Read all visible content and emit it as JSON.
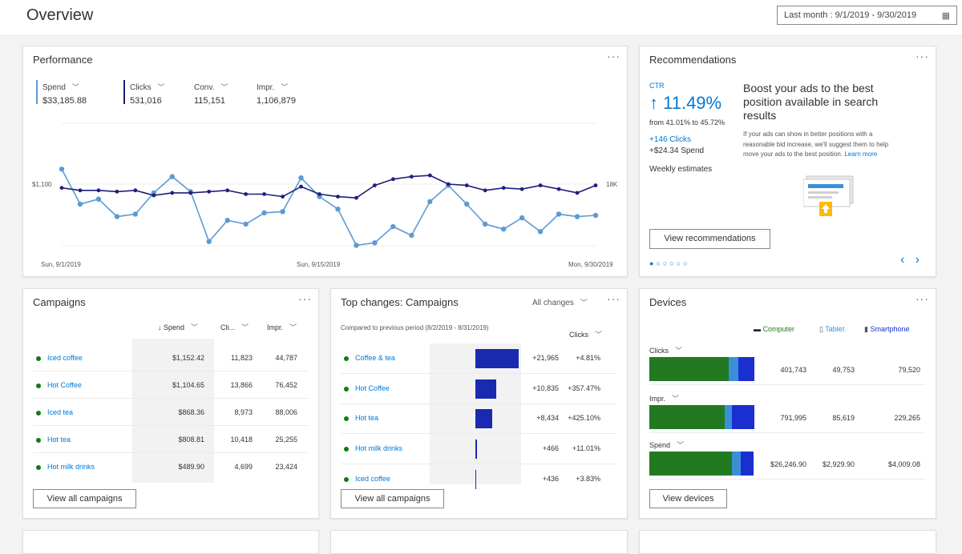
{
  "header": {
    "title": "Overview",
    "date_range": "Last month : 9/1/2019 - 9/30/2019"
  },
  "performance": {
    "title": "Performance",
    "more": "···",
    "metrics": [
      {
        "label": "Spend",
        "value": "$33,185.88",
        "color": "#5b9bd5"
      },
      {
        "label": "Clicks",
        "value": "531,016",
        "color": "#1f1f7a"
      },
      {
        "label": "Conv.",
        "value": "115,151"
      },
      {
        "label": "Impr.",
        "value": "1,106,879"
      }
    ],
    "y_left_label": "$1,100",
    "y_right_label": "18K",
    "x_labels": [
      "Sun, 9/1/2019",
      "Sun, 9/15/2019",
      "Mon, 9/30/2019"
    ]
  },
  "chart_data": {
    "type": "line",
    "x": [
      "9/1",
      "9/2",
      "9/3",
      "9/4",
      "9/5",
      "9/6",
      "9/7",
      "9/8",
      "9/9",
      "9/10",
      "9/11",
      "9/12",
      "9/13",
      "9/14",
      "9/15",
      "9/16",
      "9/17",
      "9/18",
      "9/19",
      "9/20",
      "9/21",
      "9/22",
      "9/23",
      "9/24",
      "9/25",
      "9/26",
      "9/27",
      "9/28",
      "9/29",
      "9/30"
    ],
    "series": [
      {
        "name": "Spend",
        "color": "#5b9bd5",
        "values": [
          62,
          34,
          38,
          24,
          26,
          43,
          56,
          44,
          4,
          21,
          18,
          27,
          28,
          55,
          40,
          30,
          1,
          3,
          16,
          9,
          36,
          49,
          34,
          18,
          14,
          23,
          12,
          26,
          24,
          25
        ]
      },
      {
        "name": "Clicks",
        "color": "#1f1f7a",
        "values": [
          47,
          45,
          45,
          44,
          45,
          41,
          43,
          43,
          44,
          45,
          42,
          42,
          40,
          48,
          42,
          40,
          39,
          49,
          54,
          56,
          57,
          50,
          49,
          45,
          47,
          46,
          49,
          46,
          43,
          49
        ]
      }
    ]
  },
  "recommendations": {
    "title": "Recommendations",
    "more": "···",
    "ctr_label": "CTR",
    "ctr_value": "↑ 11.49%",
    "ctr_change": "from 41.01% to 45.72%",
    "clicks": "+146 Clicks",
    "spend": "+$24.34 Spend",
    "weekly": "Weekly estimates",
    "headline": "Boost your ads to the best position available in search results",
    "body": "If your ads can show in better positions with a reasonable bid increase, we'll suggest them to help move your ads to the best position.",
    "learn_more": "Learn more",
    "button": "View recommendations",
    "pager": "●○○○○○",
    "prev": "‹",
    "next": "›"
  },
  "campaigns": {
    "title": "Campaigns",
    "more": "···",
    "headers": [
      "↓ Spend",
      "Cli...",
      "Impr."
    ],
    "rows": [
      {
        "name": "Iced coffee",
        "spend": "$1,152.42",
        "clicks": "11,823",
        "impr": "44,787"
      },
      {
        "name": "Hot Coffee",
        "spend": "$1,104.65",
        "clicks": "13,866",
        "impr": "76,452"
      },
      {
        "name": "Iced tea",
        "spend": "$868.36",
        "clicks": "8,973",
        "impr": "88,006"
      },
      {
        "name": "Hot tea",
        "spend": "$808.81",
        "clicks": "10,418",
        "impr": "25,255"
      },
      {
        "name": "Hot milk drinks",
        "spend": "$489.90",
        "clicks": "4,699",
        "impr": "23,424"
      }
    ],
    "button": "View all campaigns"
  },
  "top_changes": {
    "title": "Top changes: Campaigns",
    "filter": "All changes",
    "more": "···",
    "compared": "Compared to previous period (8/2/2019 - 8/31/2019)",
    "metric": "Clicks",
    "rows": [
      {
        "name": "Coffee & tea",
        "abs": "+21,965",
        "pct": "+4.81%",
        "bar": 1.0
      },
      {
        "name": "Hot Coffee",
        "abs": "+10,835",
        "pct": "+357.47%",
        "bar": 0.49
      },
      {
        "name": "Hot tea",
        "abs": "+8,434",
        "pct": "+425.10%",
        "bar": 0.38
      },
      {
        "name": "Hot milk drinks",
        "abs": "+466",
        "pct": "+11.01%",
        "bar": 0.03
      },
      {
        "name": "Iced coffee",
        "abs": "+436",
        "pct": "+3.83%",
        "bar": 0.02
      }
    ],
    "button": "View all campaigns"
  },
  "devices": {
    "title": "Devices",
    "more": "···",
    "legend": [
      "Computer",
      "Tablet",
      "Smartphone"
    ],
    "colors": [
      "#217a21",
      "#3a8fd8",
      "#1a2fd0"
    ],
    "metrics": [
      {
        "label": "Clicks",
        "computer": "401,743",
        "tablet": "49,753",
        "smartphone": "79,520",
        "shares": [
          0.76,
          0.09,
          0.15
        ]
      },
      {
        "label": "Impr.",
        "computer": "791,995",
        "tablet": "85,619",
        "smartphone": "229,265",
        "shares": [
          0.72,
          0.07,
          0.21
        ]
      },
      {
        "label": "Spend",
        "computer": "$26,246.90",
        "tablet": "$2,929.90",
        "smartphone": "$4,009.08",
        "shares": [
          0.79,
          0.09,
          0.12
        ]
      }
    ],
    "button": "View devices"
  }
}
